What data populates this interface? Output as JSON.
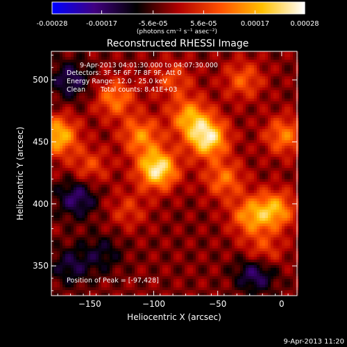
{
  "colorbar": {
    "tick_labels": [
      "-0.00028",
      "-0.00017",
      "-5.6e-05",
      "5.6e-05",
      "0.00017",
      "0.00028"
    ],
    "tick_values": [
      -0.00028,
      -0.00017,
      -5.6e-05,
      5.6e-05,
      0.00017,
      0.00028
    ],
    "range": [
      -0.00028,
      0.00028
    ],
    "unit_label": "(photons cm⁻² s⁻¹ asec⁻²)",
    "colormap": [
      "#0000ff",
      "#400080",
      "#000000",
      "#b00000",
      "#ff5000",
      "#ffc000",
      "#ffffff"
    ]
  },
  "chart_data": {
    "type": "heatmap",
    "title": "Reconstructed RHESSI Image",
    "xlabel": "Heliocentric X (arcsec)",
    "ylabel": "Heliocentric Y (arcsec)",
    "xlim": [
      -180,
      12
    ],
    "ylim": [
      326,
      523
    ],
    "x_ticks": [
      -150,
      -100,
      -50,
      0
    ],
    "y_ticks": [
      350,
      400,
      450,
      500
    ],
    "x_tick_labels": [
      "−150",
      "−100",
      "−50",
      "0"
    ],
    "y_tick_labels": [
      "350",
      "400",
      "450",
      "500"
    ],
    "annotations": [
      "9-Apr-2013 04:01:30.000 to 04:07:30.000",
      "Detectors: 3F 5F 6F 7F 8F 9F, Att 0",
      "Energy Range: 12.0 - 25.0 keV",
      "Clean",
      "Total counts: 8.41E+03",
      "Position of Peak = [-97,428]"
    ],
    "peak": {
      "x": -97,
      "y": 428
    },
    "sources": [
      {
        "x": -97,
        "y": 428,
        "value": 0.00028
      },
      {
        "x": -58,
        "y": 453,
        "value": 0.00027
      },
      {
        "x": -72,
        "y": 470,
        "value": 0.00018
      },
      {
        "x": -130,
        "y": 485,
        "value": 0.00015
      },
      {
        "x": -110,
        "y": 455,
        "value": 0.00016
      },
      {
        "x": -45,
        "y": 420,
        "value": 0.00014
      },
      {
        "x": -25,
        "y": 390,
        "value": 0.00016
      },
      {
        "x": -5,
        "y": 395,
        "value": 0.00019
      },
      {
        "x": 2,
        "y": 455,
        "value": 0.00015
      },
      {
        "x": -175,
        "y": 455,
        "value": 0.00022
      },
      {
        "x": -150,
        "y": 430,
        "value": 0.0001
      },
      {
        "x": -30,
        "y": 500,
        "value": 0.00012
      },
      {
        "x": -15,
        "y": 360,
        "value": 0.00012
      },
      {
        "x": -120,
        "y": 395,
        "value": 8e-05
      },
      {
        "x": -85,
        "y": 500,
        "value": 0.0001
      },
      {
        "x": -165,
        "y": 350,
        "value": -0.0001
      },
      {
        "x": -160,
        "y": 405,
        "value": -0.00014
      },
      {
        "x": -20,
        "y": 345,
        "value": -0.00016
      },
      {
        "x": -165,
        "y": 500,
        "value": -0.00012
      },
      {
        "x": -140,
        "y": 360,
        "value": -8e-05
      }
    ]
  },
  "footer": {
    "timestamp": "9-Apr-2013 11:20"
  }
}
